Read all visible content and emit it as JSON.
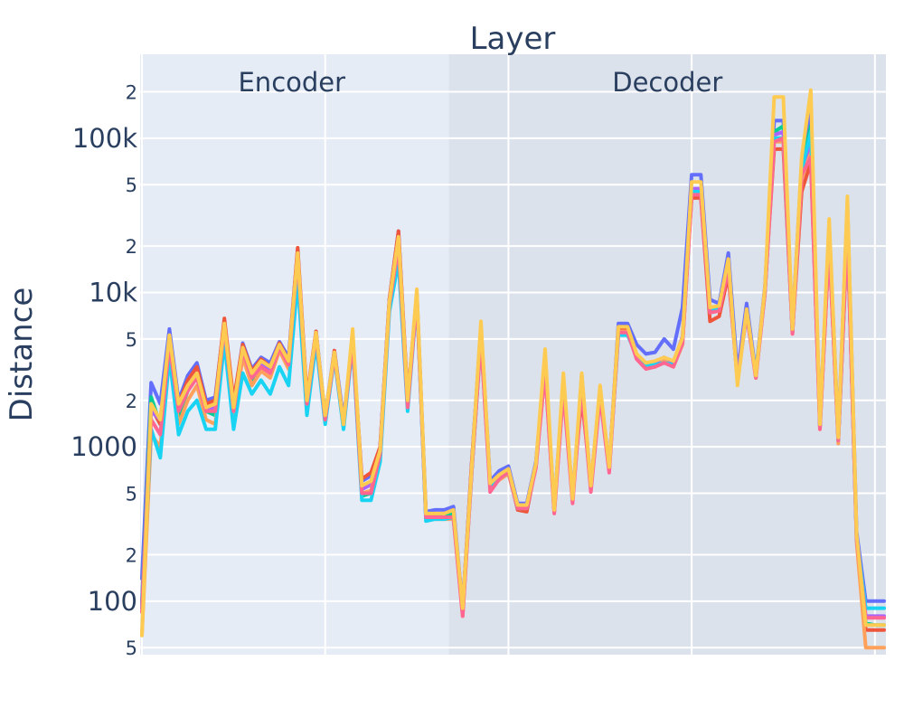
{
  "chart_data": {
    "type": "line",
    "title": "Layer",
    "xlabel": "",
    "ylabel": "Distance",
    "y_scale": "log",
    "ylim": [
      45,
      350000
    ],
    "xlim": [
      -0.2,
      81.2
    ],
    "x_tick_positions": [
      20,
      40,
      60,
      80
    ],
    "grid": true,
    "legend": "none",
    "regions": [
      {
        "label": "Encoder",
        "x_start": -0.2,
        "x_end": 33.5,
        "color": "#e5ecf6"
      },
      {
        "label": "Decoder",
        "x_start": 33.5,
        "x_end": 81.2,
        "color": "#dce2ec"
      }
    ],
    "y_major_ticks": [
      {
        "value": 100,
        "label": "100"
      },
      {
        "value": 1000,
        "label": "1000"
      },
      {
        "value": 10000,
        "label": "10k"
      },
      {
        "value": 100000,
        "label": "100k"
      }
    ],
    "y_minor_ticks": [
      {
        "value": 50,
        "label": "5"
      },
      {
        "value": 200,
        "label": "2"
      },
      {
        "value": 500,
        "label": "5"
      },
      {
        "value": 2000,
        "label": "2"
      },
      {
        "value": 5000,
        "label": "5"
      },
      {
        "value": 20000,
        "label": "2"
      },
      {
        "value": 50000,
        "label": "5"
      },
      {
        "value": 200000,
        "label": "2"
      }
    ],
    "x": [
      0,
      1,
      2,
      3,
      4,
      5,
      6,
      7,
      8,
      9,
      10,
      11,
      12,
      13,
      14,
      15,
      16,
      17,
      18,
      19,
      20,
      21,
      22,
      23,
      24,
      25,
      26,
      27,
      28,
      29,
      30,
      31,
      32,
      33,
      34,
      35,
      36,
      37,
      38,
      39,
      40,
      41,
      42,
      43,
      44,
      45,
      46,
      47,
      48,
      49,
      50,
      51,
      52,
      53,
      54,
      55,
      56,
      57,
      58,
      59,
      60,
      61,
      62,
      63,
      64,
      65,
      66,
      67,
      68,
      69,
      70,
      71,
      72,
      73,
      74,
      75,
      76,
      77,
      78,
      79,
      80,
      81
    ],
    "series": [
      {
        "color": "#636efa",
        "values": [
          140,
          2600,
          1900,
          5800,
          2000,
          2900,
          3500,
          2000,
          2100,
          6500,
          1900,
          4700,
          3200,
          3800,
          3500,
          4800,
          3800,
          19000,
          2000,
          5600,
          1600,
          4200,
          1500,
          5000,
          600,
          650,
          1000,
          9000,
          25000,
          2000,
          10000,
          380,
          390,
          390,
          410,
          90,
          800,
          6000,
          600,
          700,
          750,
          430,
          430,
          800,
          3500,
          400,
          2700,
          440,
          2900,
          550,
          2400,
          730,
          6300,
          6300,
          4600,
          4000,
          4100,
          5000,
          4300,
          8000,
          58000,
          58000,
          9000,
          8500,
          18000,
          3000,
          8500,
          3000,
          11000,
          130000,
          130000,
          6000,
          70000,
          145000,
          1400,
          27000,
          1200,
          38000,
          280,
          100,
          100,
          100
        ]
      },
      {
        "color": "#00cc96",
        "values": [
          100,
          2100,
          1400,
          5000,
          1600,
          2300,
          3100,
          1700,
          1600,
          6000,
          1700,
          4200,
          2700,
          3400,
          3100,
          4400,
          3300,
          16000,
          1800,
          5300,
          1500,
          3800,
          1400,
          4800,
          480,
          500,
          900,
          8000,
          17000,
          1800,
          9500,
          350,
          360,
          350,
          370,
          85,
          700,
          5200,
          560,
          620,
          680,
          410,
          410,
          760,
          3200,
          400,
          2500,
          460,
          2600,
          530,
          2300,
          720,
          5500,
          5500,
          3900,
          3500,
          3500,
          3700,
          3500,
          5000,
          45000,
          45000,
          7700,
          7700,
          15000,
          2800,
          7200,
          3000,
          10000,
          110000,
          120000,
          5500,
          65000,
          120000,
          1350,
          25000,
          1100,
          26000,
          260,
          72,
          70,
          70
        ]
      },
      {
        "color": "#ef553b",
        "values": [
          95,
          1800,
          1400,
          5200,
          1900,
          2700,
          3300,
          1900,
          2000,
          6800,
          2000,
          4600,
          3100,
          3700,
          3300,
          4700,
          3600,
          19500,
          2100,
          5600,
          1500,
          4200,
          1400,
          5000,
          620,
          680,
          1000,
          9000,
          25000,
          2100,
          9500,
          360,
          350,
          350,
          350,
          90,
          800,
          5500,
          550,
          650,
          700,
          390,
          380,
          750,
          3300,
          380,
          2400,
          480,
          2100,
          570,
          2300,
          750,
          5900,
          5900,
          3800,
          3400,
          3500,
          3700,
          3400,
          4800,
          41000,
          41000,
          6500,
          7000,
          13000,
          2700,
          7500,
          2800,
          10500,
          85000,
          85000,
          5500,
          45000,
          70000,
          1400,
          20000,
          1100,
          24000,
          260,
          65,
          65,
          65
        ]
      },
      {
        "color": "#ab63fa",
        "values": [
          95,
          1700,
          1500,
          5100,
          1800,
          2500,
          3000,
          1700,
          1800,
          5800,
          1800,
          4300,
          2900,
          3500,
          3200,
          4500,
          3500,
          17000,
          1900,
          5400,
          1500,
          4000,
          1400,
          4900,
          530,
          570,
          950,
          8500,
          21000,
          1900,
          9300,
          340,
          350,
          350,
          350,
          85,
          720,
          5200,
          570,
          640,
          700,
          420,
          420,
          760,
          3400,
          390,
          2500,
          470,
          2600,
          550,
          2300,
          720,
          5500,
          5500,
          3800,
          3400,
          3400,
          3800,
          3500,
          5200,
          47000,
          47000,
          7800,
          7900,
          15500,
          2800,
          7600,
          2900,
          10200,
          105000,
          110000,
          5600,
          60000,
          95000,
          1350,
          22000,
          1100,
          27000,
          250,
          80,
          80,
          80
        ]
      },
      {
        "color": "#ffa15a",
        "values": [
          60,
          1200,
          1000,
          4000,
          1400,
          2000,
          2500,
          1500,
          1400,
          5200,
          1500,
          3800,
          2500,
          3100,
          2800,
          4200,
          3200,
          15000,
          1800,
          5200,
          1500,
          3800,
          1400,
          4700,
          500,
          520,
          900,
          8300,
          19000,
          1900,
          9000,
          350,
          340,
          340,
          340,
          80,
          700,
          5000,
          540,
          610,
          670,
          400,
          400,
          740,
          3100,
          380,
          2400,
          450,
          2500,
          530,
          2200,
          700,
          5600,
          5600,
          3700,
          3300,
          3300,
          3600,
          3300,
          4600,
          44000,
          44000,
          7500,
          7600,
          14500,
          2600,
          7400,
          2800,
          10000,
          95000,
          95000,
          5400,
          55000,
          80000,
          1300,
          21000,
          1050,
          25000,
          240,
          50,
          50,
          50
        ]
      },
      {
        "color": "#19d3f3",
        "values": [
          90,
          1300,
          850,
          3800,
          1200,
          1700,
          2000,
          1300,
          1300,
          4800,
          1300,
          3000,
          2200,
          2700,
          2200,
          3300,
          2500,
          12000,
          1600,
          4700,
          1400,
          3800,
          1300,
          4600,
          450,
          450,
          800,
          7500,
          16000,
          1700,
          9000,
          330,
          340,
          340,
          350,
          85,
          700,
          5000,
          550,
          620,
          690,
          400,
          400,
          750,
          3300,
          390,
          2500,
          460,
          2500,
          540,
          2300,
          720,
          5300,
          5300,
          3900,
          3400,
          3400,
          3500,
          3400,
          4900,
          45000,
          45000,
          7600,
          7800,
          15000,
          2700,
          7400,
          2900,
          10200,
          100000,
          100000,
          5500,
          62000,
          110000,
          1350,
          24000,
          1100,
          26000,
          250,
          90,
          90,
          90
        ]
      },
      {
        "color": "#ff6692",
        "values": [
          85,
          1500,
          1200,
          4600,
          1700,
          2300,
          2800,
          1700,
          1700,
          6000,
          1700,
          4200,
          2800,
          3300,
          3000,
          4400,
          3400,
          17000,
          1900,
          5300,
          1500,
          3900,
          1400,
          4800,
          500,
          500,
          900,
          8300,
          20000,
          1800,
          9200,
          350,
          350,
          350,
          350,
          80,
          700,
          5000,
          510,
          620,
          690,
          400,
          400,
          730,
          3100,
          370,
          2300,
          430,
          2400,
          510,
          2100,
          680,
          5500,
          5500,
          3700,
          3200,
          3300,
          3500,
          3300,
          4700,
          43000,
          43000,
          7400,
          7600,
          14000,
          2700,
          7300,
          2800,
          10000,
          95000,
          100000,
          5400,
          58000,
          75000,
          1300,
          21000,
          1100,
          25000,
          250,
          78,
          78,
          78
        ]
      },
      {
        "color": "#fecb52",
        "values": [
          60,
          1900,
          1500,
          5300,
          1900,
          2500,
          3000,
          1800,
          1900,
          6300,
          1800,
          4400,
          3000,
          3600,
          3300,
          4600,
          3600,
          18000,
          2000,
          5500,
          1600,
          4100,
          1400,
          5800,
          560,
          600,
          950,
          8700,
          23000,
          2000,
          10500,
          370,
          370,
          370,
          390,
          90,
          750,
          6500,
          580,
          660,
          720,
          420,
          420,
          780,
          4300,
          390,
          3000,
          460,
          3000,
          560,
          2500,
          740,
          6000,
          6000,
          4000,
          3500,
          3600,
          3800,
          3600,
          5100,
          52000,
          52000,
          8000,
          8200,
          16500,
          2500,
          7800,
          2900,
          10800,
          185000,
          185000,
          5800,
          75000,
          205000,
          1400,
          30000,
          1150,
          42000,
          270,
          70,
          70,
          70
        ]
      }
    ]
  }
}
